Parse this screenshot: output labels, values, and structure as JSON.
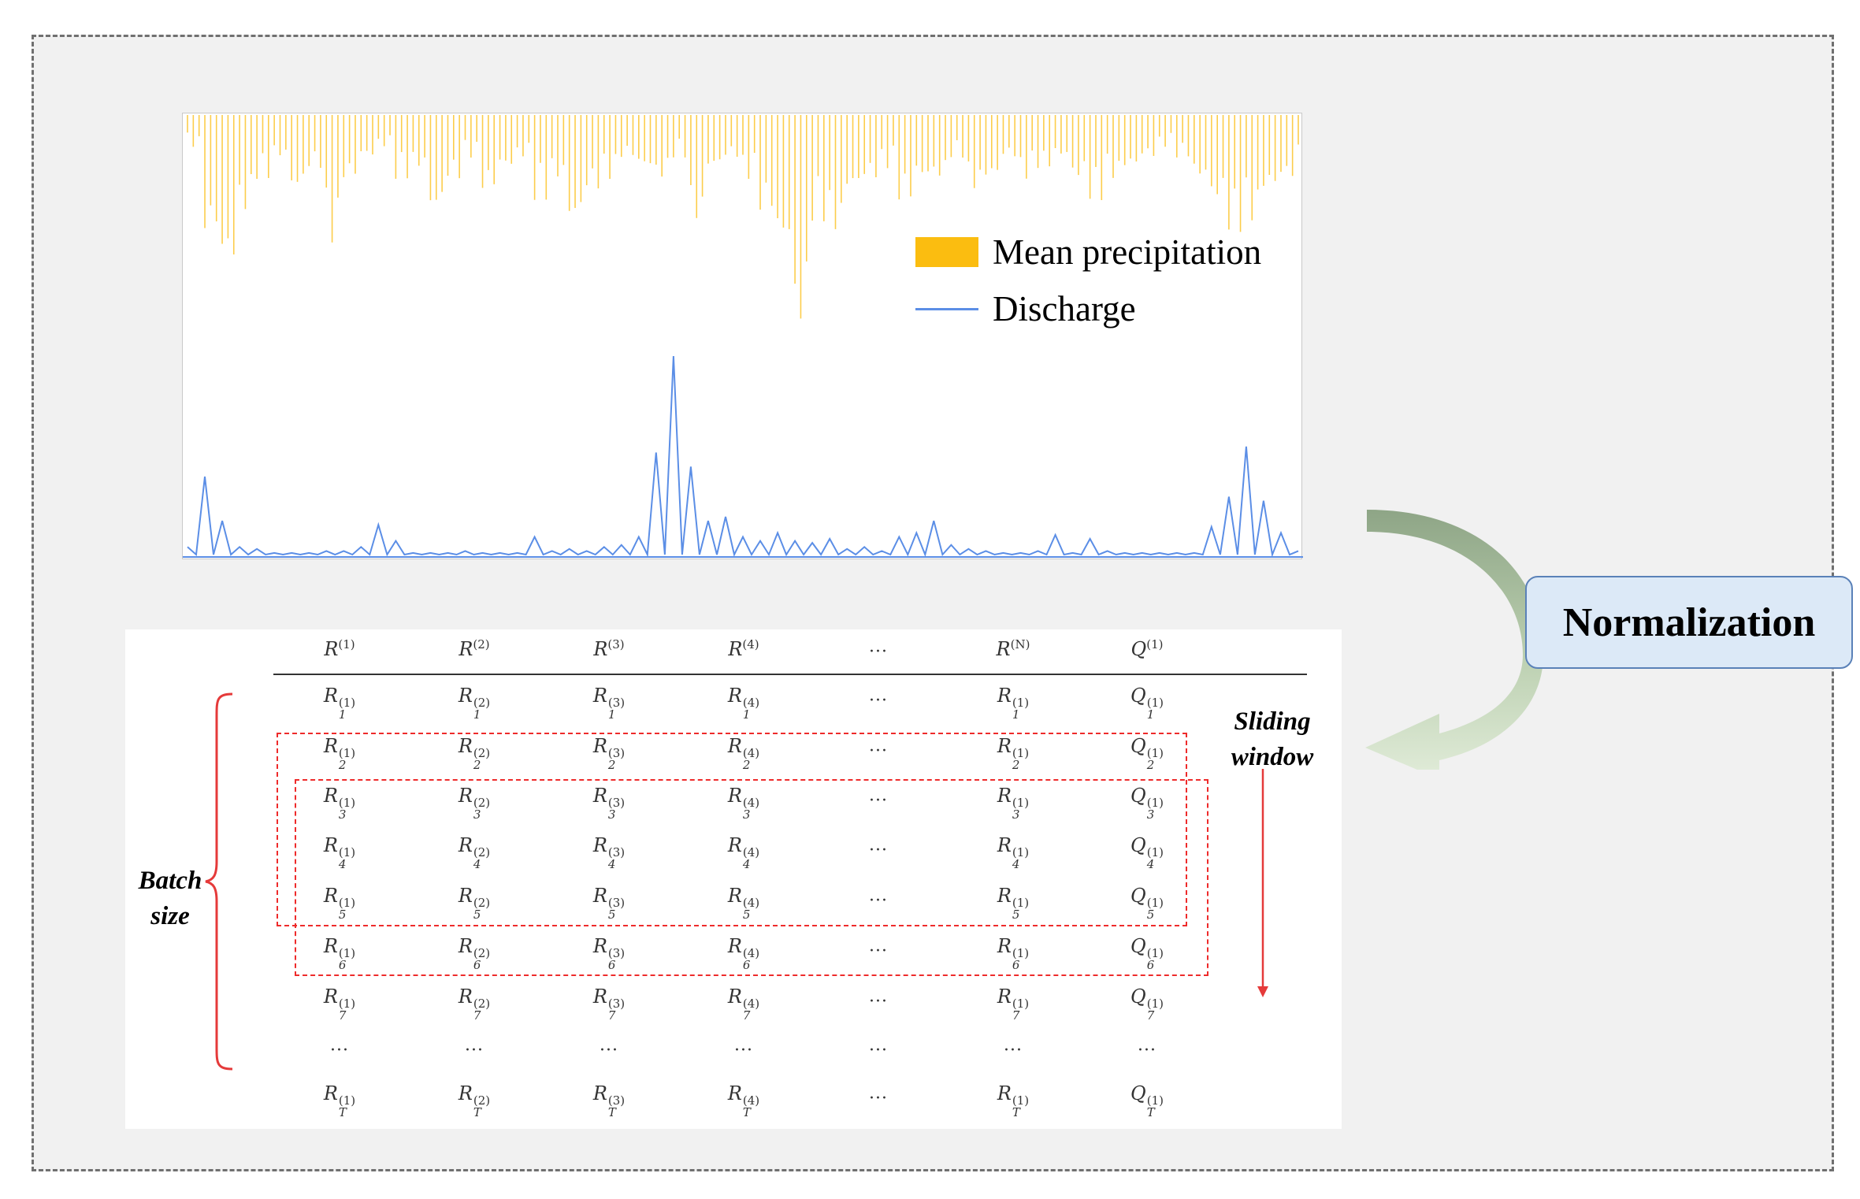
{
  "colors": {
    "precipitation": "#fbbd10",
    "discharge": "#5b8ee6",
    "window_border": "#ee2b2b",
    "normalization_box": "#dce9f7",
    "arrow": "#9fb594"
  },
  "chart": {
    "legend": {
      "precipitation": "Mean precipitation",
      "discharge": "Discharge"
    }
  },
  "chart_data": {
    "type": "area",
    "series": [
      {
        "name": "Mean precipitation",
        "orientation": "inverted-from-top",
        "values": [
          0.15,
          0.55,
          0.7,
          0.45,
          0.3,
          0.2,
          0.35,
          0.25,
          0.6,
          0.3,
          0.2,
          0.15,
          0.3,
          0.25,
          0.45,
          0.3,
          0.2,
          0.35,
          0.25,
          0.2,
          0.4,
          0.3,
          0.5,
          0.35,
          0.3,
          0.2,
          0.25,
          0.3,
          0.2,
          0.5,
          0.25,
          0.2,
          0.3,
          0.45,
          0.6,
          1.0,
          0.5,
          0.55,
          0.35,
          0.3,
          0.25,
          0.4,
          0.3,
          0.3,
          0.2,
          0.35,
          0.3,
          0.2,
          0.3,
          0.25,
          0.2,
          0.3,
          0.4,
          0.3,
          0.25,
          0.2,
          0.15,
          0.2,
          0.3,
          0.4,
          0.55,
          0.5,
          0.35,
          0.3,
          0.2
        ]
      },
      {
        "name": "Discharge",
        "values": [
          0.05,
          0.4,
          0.18,
          0.05,
          0.04,
          0.02,
          0.02,
          0.02,
          0.03,
          0.03,
          0.05,
          0.16,
          0.08,
          0.02,
          0.02,
          0.02,
          0.03,
          0.02,
          0.02,
          0.02,
          0.1,
          0.03,
          0.04,
          0.03,
          0.05,
          0.06,
          0.1,
          0.52,
          1.0,
          0.45,
          0.18,
          0.2,
          0.1,
          0.08,
          0.12,
          0.08,
          0.07,
          0.09,
          0.04,
          0.05,
          0.03,
          0.1,
          0.12,
          0.18,
          0.06,
          0.04,
          0.03,
          0.02,
          0.02,
          0.03,
          0.11,
          0.02,
          0.09,
          0.03,
          0.02,
          0.02,
          0.02,
          0.02,
          0.02,
          0.15,
          0.3,
          0.55,
          0.28,
          0.12,
          0.03
        ]
      }
    ]
  },
  "normalization": {
    "label": "Normalization"
  },
  "table": {
    "headers": [
      "R",
      "R",
      "R",
      "R",
      "···",
      "R",
      "Q"
    ],
    "header_sups": [
      "(1)",
      "(2)",
      "(3)",
      "(4)",
      "",
      "(N)",
      "(1)"
    ],
    "row_letters": [
      "R",
      "R",
      "R",
      "R",
      "···",
      "R",
      "Q"
    ],
    "row_sups": [
      "(1)",
      "(2)",
      "(3)",
      "(4)",
      "",
      "(1)",
      "(1)"
    ],
    "row_subs": [
      "1",
      "2",
      "3",
      "4",
      "5",
      "6",
      "7",
      "...",
      "T"
    ],
    "ellipsis": "···",
    "batch_label": "Batch size",
    "sliding_label": "Sliding window"
  }
}
